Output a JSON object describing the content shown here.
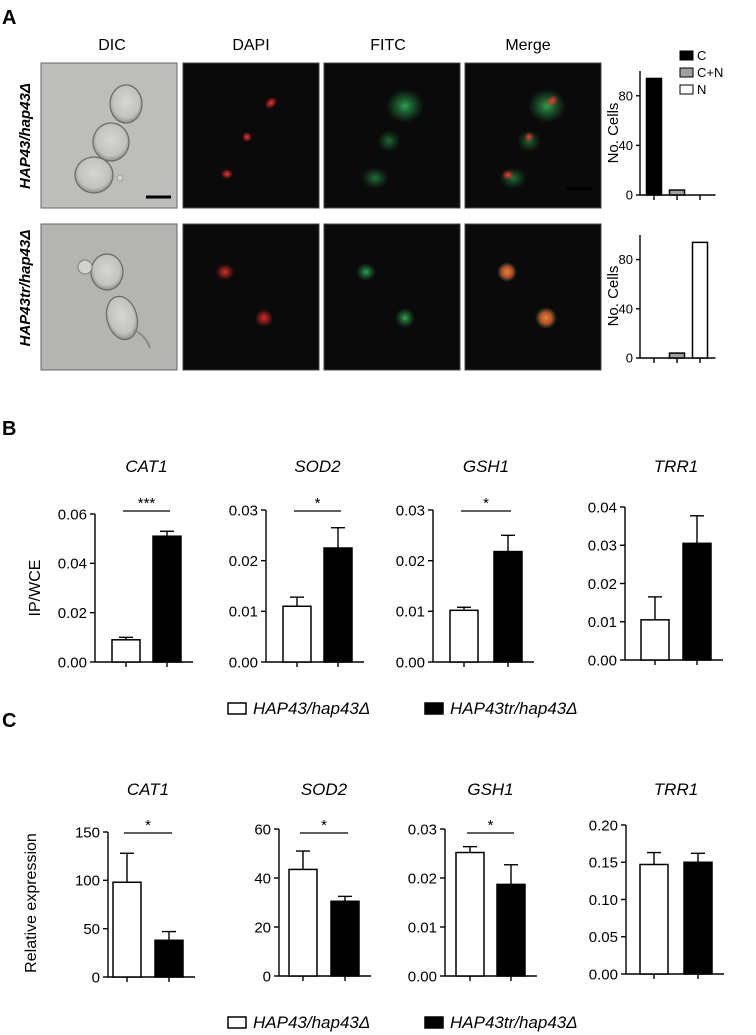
{
  "panels": {
    "A": "A",
    "B": "B",
    "C": "C"
  },
  "panel_a": {
    "columns": [
      "DIC",
      "DAPI",
      "FITC",
      "Merge"
    ],
    "rows": [
      "HAP43/hap43Δ",
      "HAP43tr/hap43Δ"
    ],
    "legend": [
      "C",
      "C+N",
      "N"
    ],
    "legend_colors": [
      "#000000",
      "#a0a0a0",
      "#ffffff"
    ]
  },
  "legend_bc": {
    "labels": [
      "HAP43/hap43Δ",
      "HAP43tr/hap43Δ"
    ],
    "colors": [
      "#ffffff",
      "#000000"
    ]
  },
  "chart_data": [
    {
      "panel": "A",
      "type": "bar",
      "ylabel": "No. Cells",
      "ylim": [
        0,
        100
      ],
      "yticks": [
        0,
        40,
        80
      ],
      "categories": [
        "C",
        "C+N",
        "N"
      ],
      "values": [
        94,
        4,
        0
      ],
      "fills": [
        "#000000",
        "#a0a0a0",
        "#ffffff"
      ]
    },
    {
      "panel": "A",
      "type": "bar",
      "ylabel": "No. Cells",
      "ylim": [
        0,
        100
      ],
      "yticks": [
        0,
        40,
        80
      ],
      "categories": [
        "C",
        "C+N",
        "N"
      ],
      "values": [
        0,
        4,
        94
      ],
      "fills": [
        "#000000",
        "#a0a0a0",
        "#ffffff"
      ]
    },
    {
      "panel": "B",
      "type": "bar",
      "title": "CAT1",
      "ylabel": "IP/WCE",
      "ylim": [
        0,
        0.06
      ],
      "yticks": [
        "0.00",
        "0.02",
        "0.04",
        "0.06"
      ],
      "categories": [
        "HAP43/hap43Δ",
        "HAP43tr/hap43Δ"
      ],
      "values": [
        0.009,
        0.051
      ],
      "errors": [
        0.001,
        0.002
      ],
      "sig": "***"
    },
    {
      "panel": "B",
      "type": "bar",
      "title": "SOD2",
      "ylabel": "",
      "ylim": [
        0,
        0.03
      ],
      "yticks": [
        "0.00",
        "0.01",
        "0.02",
        "0.03"
      ],
      "categories": [
        "HAP43/hap43Δ",
        "HAP43tr/hap43Δ"
      ],
      "values": [
        0.011,
        0.0225
      ],
      "errors": [
        0.0018,
        0.004
      ],
      "sig": "*"
    },
    {
      "panel": "B",
      "type": "bar",
      "title": "GSH1",
      "ylabel": "",
      "ylim": [
        0,
        0.03
      ],
      "yticks": [
        "0.00",
        "0.01",
        "0.02",
        "0.03"
      ],
      "categories": [
        "HAP43/hap43Δ",
        "HAP43tr/hap43Δ"
      ],
      "values": [
        0.0102,
        0.0218
      ],
      "errors": [
        0.0006,
        0.0032
      ],
      "sig": "*"
    },
    {
      "panel": "B",
      "type": "bar",
      "title": "TRR1",
      "ylabel": "",
      "ylim": [
        0,
        0.04
      ],
      "yticks": [
        "0.00",
        "0.01",
        "0.02",
        "0.03",
        "0.04"
      ],
      "categories": [
        "HAP43/hap43Δ",
        "HAP43tr/hap43Δ"
      ],
      "values": [
        0.0105,
        0.0305
      ],
      "errors": [
        0.006,
        0.0072
      ],
      "sig": ""
    },
    {
      "panel": "C",
      "type": "bar",
      "title": "CAT1",
      "ylabel": "Relative expression",
      "ylim": [
        0,
        150
      ],
      "yticks": [
        "0",
        "50",
        "100",
        "150"
      ],
      "categories": [
        "HAP43/hap43Δ",
        "HAP43tr/hap43Δ"
      ],
      "values": [
        98,
        38
      ],
      "errors": [
        30,
        9
      ],
      "sig": "*"
    },
    {
      "panel": "C",
      "type": "bar",
      "title": "SOD2",
      "ylabel": "",
      "ylim": [
        0,
        60
      ],
      "yticks": [
        "0",
        "20",
        "40",
        "60"
      ],
      "categories": [
        "HAP43/hap43Δ",
        "HAP43tr/hap43Δ"
      ],
      "values": [
        43.5,
        30.5
      ],
      "errors": [
        7.5,
        2
      ],
      "sig": "*"
    },
    {
      "panel": "C",
      "type": "bar",
      "title": "GSH1",
      "ylabel": "",
      "ylim": [
        0,
        0.03
      ],
      "yticks": [
        "0.00",
        "0.01",
        "0.02",
        "0.03"
      ],
      "categories": [
        "HAP43/hap43Δ",
        "HAP43tr/hap43Δ"
      ],
      "values": [
        0.0252,
        0.0187
      ],
      "errors": [
        0.0012,
        0.004
      ],
      "sig": "*"
    },
    {
      "panel": "C",
      "type": "bar",
      "title": "TRR1",
      "ylabel": "",
      "ylim": [
        0,
        0.2
      ],
      "yticks": [
        "0.00",
        "0.05",
        "0.10",
        "0.15",
        "0.20"
      ],
      "categories": [
        "HAP43/hap43Δ",
        "HAP43tr/hap43Δ"
      ],
      "values": [
        0.147,
        0.15
      ],
      "errors": [
        0.016,
        0.012
      ],
      "sig": ""
    }
  ]
}
